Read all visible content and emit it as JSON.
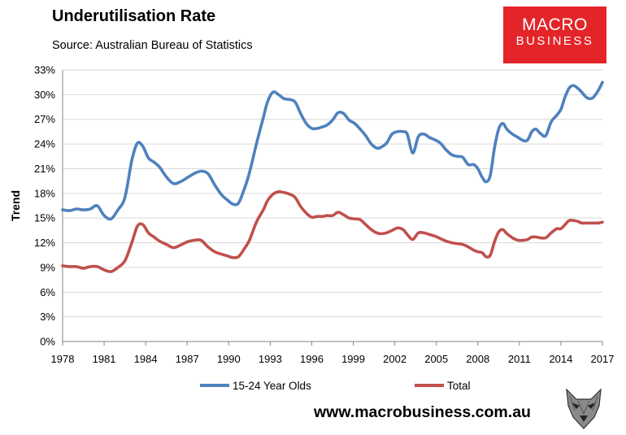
{
  "header": {
    "title": "Underutilisation Rate",
    "subtitle": "Source: Australian Bureau of Statistics"
  },
  "logo": {
    "line1": "MACRO",
    "line2": "BUSINESS"
  },
  "footer": {
    "url": "www.macrobusiness.com.au"
  },
  "colors": {
    "youth": "#4f81bd",
    "total": "#c0504d",
    "grid": "#d9d9d9",
    "logo_bg": "#e3252a"
  },
  "chart_data": {
    "type": "line",
    "title": "Underutilisation Rate",
    "xlabel": "",
    "ylabel": "Trend",
    "xlim": [
      1978,
      2017
    ],
    "ylim": [
      0,
      33
    ],
    "y_ticks": [
      0,
      3,
      6,
      9,
      12,
      15,
      18,
      21,
      24,
      27,
      30,
      33
    ],
    "y_tick_labels": [
      "0%",
      "3%",
      "6%",
      "9%",
      "12%",
      "15%",
      "18%",
      "21%",
      "24%",
      "27%",
      "30%",
      "33%"
    ],
    "x_ticks": [
      1978,
      1981,
      1984,
      1987,
      1990,
      1993,
      1996,
      1999,
      2002,
      2005,
      2008,
      2011,
      2014,
      2017
    ],
    "x_tick_labels": [
      "1978",
      "1981",
      "1984",
      "1987",
      "1990",
      "1993",
      "1996",
      "1999",
      "2002",
      "2005",
      "2008",
      "2011",
      "2014",
      "2017"
    ],
    "grid": true,
    "legend_position": "bottom",
    "series": [
      {
        "name": "15-24 Year Olds",
        "x": [
          1978.0,
          1978.5,
          1979.0,
          1979.5,
          1980.0,
          1980.5,
          1981.0,
          1981.5,
          1982.0,
          1982.5,
          1983.0,
          1983.4,
          1983.8,
          1984.2,
          1984.6,
          1985.0,
          1985.5,
          1986.0,
          1986.5,
          1987.0,
          1987.5,
          1988.0,
          1988.5,
          1989.0,
          1989.5,
          1989.9,
          1990.3,
          1990.7,
          1991.1,
          1991.5,
          1992.0,
          1992.5,
          1992.8,
          1993.2,
          1993.6,
          1994.0,
          1994.4,
          1994.8,
          1995.2,
          1995.6,
          1996.0,
          1996.4,
          1996.8,
          1997.1,
          1997.5,
          1997.9,
          1998.3,
          1998.7,
          1999.1,
          1999.5,
          1999.9,
          2000.3,
          2000.7,
          2001.0,
          2001.4,
          2001.8,
          2002.2,
          2002.6,
          2002.9,
          2003.3,
          2003.7,
          2004.1,
          2004.5,
          2004.9,
          2005.3,
          2005.7,
          2006.1,
          2006.5,
          2006.9,
          2007.3,
          2007.7,
          2008.0,
          2008.3,
          2008.6,
          2008.9,
          2009.2,
          2009.5,
          2009.8,
          2010.1,
          2010.5,
          2010.9,
          2011.3,
          2011.6,
          2011.9,
          2012.2,
          2012.5,
          2012.9,
          2013.3,
          2013.7,
          2014.0,
          2014.3,
          2014.6,
          2014.9,
          2015.2,
          2015.5,
          2015.9,
          2016.3,
          2016.7,
          2017.0
        ],
        "values": [
          16.0,
          15.9,
          16.1,
          16.0,
          16.1,
          16.5,
          15.3,
          14.9,
          16.0,
          17.5,
          22.0,
          24.1,
          23.7,
          22.3,
          21.8,
          21.2,
          20.0,
          19.2,
          19.4,
          19.9,
          20.4,
          20.7,
          20.4,
          19.0,
          17.8,
          17.2,
          16.7,
          16.8,
          18.4,
          20.5,
          24.0,
          27.2,
          29.1,
          30.3,
          30.0,
          29.5,
          29.4,
          29.1,
          27.7,
          26.5,
          25.9,
          25.9,
          26.1,
          26.3,
          26.9,
          27.8,
          27.7,
          26.9,
          26.5,
          25.8,
          25.0,
          24.0,
          23.5,
          23.6,
          24.1,
          25.2,
          25.5,
          25.5,
          25.2,
          22.9,
          24.9,
          25.2,
          24.8,
          24.5,
          24.1,
          23.3,
          22.7,
          22.5,
          22.4,
          21.5,
          21.5,
          21.0,
          20.0,
          19.4,
          20.2,
          23.5,
          25.8,
          26.5,
          25.8,
          25.2,
          24.8,
          24.4,
          24.5,
          25.5,
          25.8,
          25.3,
          25.0,
          26.7,
          27.5,
          28.2,
          29.7,
          30.8,
          31.1,
          30.8,
          30.3,
          29.6,
          29.6,
          30.5,
          31.5
        ]
      },
      {
        "name": "Total",
        "x": [
          1978.0,
          1978.5,
          1979.0,
          1979.5,
          1980.0,
          1980.5,
          1981.0,
          1981.5,
          1982.0,
          1982.5,
          1983.0,
          1983.4,
          1983.8,
          1984.2,
          1984.6,
          1985.0,
          1985.5,
          1986.0,
          1986.5,
          1987.0,
          1987.5,
          1988.0,
          1988.5,
          1989.0,
          1989.5,
          1989.9,
          1990.3,
          1990.7,
          1991.1,
          1991.5,
          1992.0,
          1992.5,
          1992.8,
          1993.2,
          1993.6,
          1994.0,
          1994.4,
          1994.8,
          1995.2,
          1995.6,
          1996.0,
          1996.4,
          1996.8,
          1997.1,
          1997.5,
          1997.9,
          1998.3,
          1998.7,
          1999.1,
          1999.5,
          1999.9,
          2000.3,
          2000.7,
          2001.0,
          2001.4,
          2001.8,
          2002.2,
          2002.6,
          2002.9,
          2003.3,
          2003.7,
          2004.1,
          2004.5,
          2004.9,
          2005.3,
          2005.7,
          2006.1,
          2006.5,
          2006.9,
          2007.3,
          2007.7,
          2008.0,
          2008.3,
          2008.6,
          2008.9,
          2009.2,
          2009.5,
          2009.8,
          2010.1,
          2010.5,
          2010.9,
          2011.3,
          2011.6,
          2011.9,
          2012.2,
          2012.5,
          2012.9,
          2013.3,
          2013.7,
          2014.0,
          2014.3,
          2014.6,
          2014.9,
          2015.2,
          2015.5,
          2015.9,
          2016.3,
          2016.7,
          2017.0
        ],
        "values": [
          9.2,
          9.1,
          9.1,
          8.9,
          9.1,
          9.1,
          8.7,
          8.5,
          9.0,
          9.8,
          12.0,
          14.0,
          14.2,
          13.2,
          12.7,
          12.2,
          11.8,
          11.4,
          11.7,
          12.1,
          12.3,
          12.3,
          11.5,
          10.9,
          10.6,
          10.4,
          10.2,
          10.3,
          11.2,
          12.3,
          14.5,
          16.0,
          17.1,
          17.9,
          18.2,
          18.1,
          17.9,
          17.5,
          16.4,
          15.6,
          15.1,
          15.2,
          15.2,
          15.3,
          15.3,
          15.7,
          15.4,
          15.0,
          14.9,
          14.8,
          14.2,
          13.6,
          13.2,
          13.1,
          13.2,
          13.5,
          13.8,
          13.6,
          13.0,
          12.4,
          13.2,
          13.2,
          13.0,
          12.8,
          12.5,
          12.2,
          12.0,
          11.9,
          11.8,
          11.5,
          11.1,
          10.9,
          10.8,
          10.3,
          10.5,
          12.1,
          13.3,
          13.6,
          13.1,
          12.6,
          12.3,
          12.3,
          12.4,
          12.7,
          12.7,
          12.6,
          12.6,
          13.2,
          13.7,
          13.7,
          14.2,
          14.7,
          14.7,
          14.6,
          14.4,
          14.4,
          14.4,
          14.4,
          14.5
        ]
      }
    ]
  }
}
